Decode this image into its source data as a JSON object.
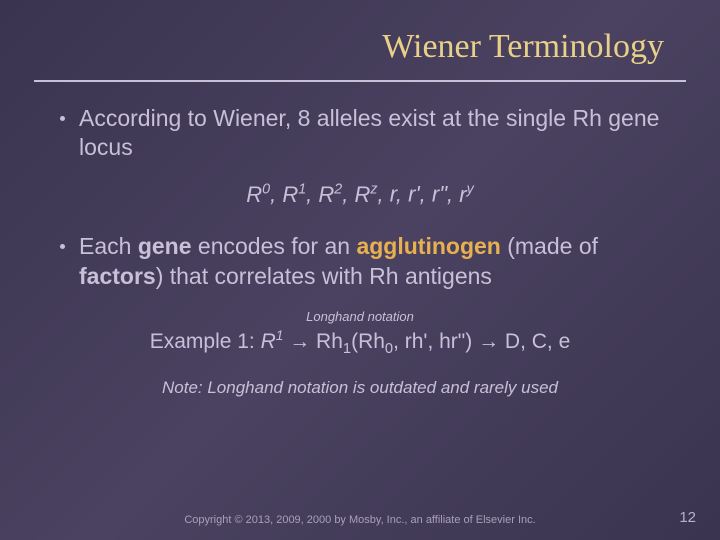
{
  "colors": {
    "background_start": "#3a3450",
    "background_end": "#4a4260",
    "title_color": "#e8d088",
    "body_text": "#c8c0d8",
    "highlight": "#e8b050",
    "underline": "#c8c0d8"
  },
  "typography": {
    "title_fontsize": 34,
    "body_fontsize": 23,
    "alleles_fontsize": 22,
    "example_fontsize": 21,
    "note_fontsize": 17,
    "longhand_fontsize": 13,
    "copyright_fontsize": 11,
    "pagenum_fontsize": 15
  },
  "title": "Wiener Terminology",
  "bullets": [
    "According to Wiener, 8 alleles exist at the single Rh gene locus",
    "Each gene encodes for an agglutinogen (made of factors) that correlates with Rh antigens"
  ],
  "bullet2_parts": {
    "p1": "Each ",
    "p2_bold": "gene",
    "p3": " encodes for an ",
    "p4_highlight": "agglutinogen",
    "p5": " (made of ",
    "p6_bold": "factors",
    "p7": ") that correlates with Rh antigens"
  },
  "alleles": {
    "prefix": "R",
    "sups": [
      "0",
      "1",
      "2",
      "z"
    ],
    "lower_items": [
      "r",
      "r'",
      "r\"",
      "r"
    ],
    "last_sup": "y"
  },
  "longhand_label": "Longhand notation",
  "example": {
    "label": "Example 1: ",
    "gene": "R",
    "gene_sup": "1",
    "arrow": " → ",
    "rh": "Rh",
    "rh_sub": "1",
    "factors": "(Rh",
    "factors_sub": "0",
    "factors_rest": ", rh', hr\")",
    "antigens": " D, C, e"
  },
  "note": "Note: Longhand notation is outdated and rarely used",
  "copyright": "Copyright © 2013, 2009, 2000 by Mosby, Inc., an affiliate of Elsevier Inc.",
  "page_number": "12"
}
